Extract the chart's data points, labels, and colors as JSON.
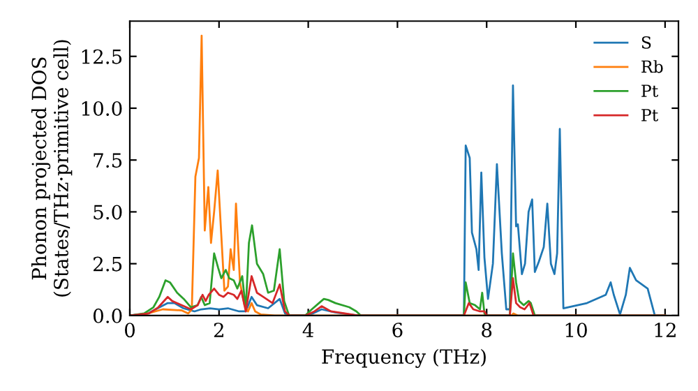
{
  "chart_data": {
    "type": "line",
    "xlabel": "Frequency (THz)",
    "ylabel": "Phonon projected DOS\n(States/THz·primitive cell)",
    "xlim": [
      0,
      12.3
    ],
    "ylim": [
      0,
      14.2
    ],
    "xticks": [
      0,
      2,
      4,
      6,
      8,
      10,
      12
    ],
    "yticks": [
      {
        "value": 0,
        "label": "0.0"
      },
      {
        "value": 2.5,
        "label": "2.5"
      },
      {
        "value": 5,
        "label": "5.0"
      },
      {
        "value": 7.5,
        "label": "7.5"
      },
      {
        "value": 10,
        "label": "10.0"
      },
      {
        "value": 12.5,
        "label": "12.5"
      }
    ],
    "legend": "top right",
    "grid": false,
    "line_style": "solid",
    "marker": "none",
    "series": [
      {
        "name": "S",
        "color": "#1f77b4",
        "x": [
          0,
          0.4,
          0.85,
          1.0,
          1.2,
          1.45,
          1.6,
          1.8,
          2.0,
          2.2,
          2.45,
          2.6,
          2.73,
          2.85,
          3.1,
          3.36,
          3.48,
          3.58,
          4.0,
          4.3,
          4.6,
          5.1,
          7.49,
          7.53,
          7.62,
          7.67,
          7.77,
          7.82,
          7.88,
          7.95,
          8.03,
          8.14,
          8.23,
          8.34,
          8.44,
          8.52,
          8.59,
          8.66,
          8.7,
          8.79,
          8.86,
          8.94,
          9.02,
          9.08,
          9.17,
          9.28,
          9.36,
          9.44,
          9.52,
          9.58,
          9.64,
          9.72,
          10.25,
          10.67,
          10.78,
          10.85,
          10.99,
          11.12,
          11.21,
          11.35,
          11.61,
          11.77,
          12.0
        ],
        "values": [
          0,
          0.1,
          0.6,
          0.6,
          0.35,
          0.2,
          0.3,
          0.35,
          0.3,
          0.35,
          0.2,
          0.2,
          0.9,
          0.5,
          0.35,
          0.8,
          0.1,
          0,
          0,
          0.3,
          0.15,
          0,
          0,
          8.2,
          7.6,
          4.0,
          3.2,
          2.2,
          6.9,
          2.8,
          0.8,
          2.5,
          7.3,
          3.0,
          0.3,
          0.3,
          11.1,
          4.3,
          4.4,
          2.0,
          2.5,
          5.0,
          5.6,
          2.1,
          2.6,
          3.3,
          5.4,
          2.5,
          2.0,
          3.0,
          9.0,
          0.35,
          0.6,
          1.0,
          1.6,
          1.0,
          0.05,
          1.0,
          2.3,
          1.7,
          1.3,
          0,
          0
        ]
      },
      {
        "name": "Rb",
        "color": "#ff7f0e",
        "x": [
          0,
          0.32,
          0.74,
          1.16,
          1.31,
          1.39,
          1.47,
          1.55,
          1.61,
          1.68,
          1.76,
          1.82,
          1.89,
          1.97,
          2.05,
          2.12,
          2.2,
          2.26,
          2.33,
          2.38,
          2.47,
          2.57,
          2.65,
          2.73,
          2.81,
          2.94,
          3.25,
          8.55,
          8.6,
          8.7,
          12.0
        ],
        "values": [
          0,
          0.05,
          0.3,
          0.25,
          0.1,
          0.3,
          6.7,
          7.6,
          13.5,
          4.1,
          6.2,
          3.5,
          5.0,
          7.0,
          3.9,
          1.2,
          1.4,
          3.2,
          2.2,
          5.4,
          1.6,
          0.5,
          0.2,
          0.6,
          0.2,
          0.05,
          0,
          0,
          0.1,
          0,
          0
        ]
      },
      {
        "name": "Pt",
        "color": "#2ca02c",
        "x": [
          0,
          0.32,
          0.53,
          0.66,
          0.8,
          0.9,
          1.06,
          1.21,
          1.37,
          1.52,
          1.6,
          1.68,
          1.79,
          1.89,
          1.98,
          2.05,
          2.15,
          2.23,
          2.33,
          2.41,
          2.52,
          2.6,
          2.67,
          2.74,
          2.85,
          2.99,
          3.1,
          3.23,
          3.36,
          3.46,
          3.57,
          3.93,
          4.08,
          4.24,
          4.35,
          4.45,
          4.61,
          4.92,
          5.08,
          5.18,
          7.49,
          7.53,
          7.62,
          7.74,
          7.85,
          7.9,
          7.95,
          8.0,
          8.52,
          8.59,
          8.66,
          8.73,
          8.83,
          8.94,
          8.99,
          9.08,
          12.0
        ],
        "values": [
          0,
          0.1,
          0.4,
          0.9,
          1.7,
          1.6,
          1.1,
          0.8,
          0.4,
          0.5,
          0.9,
          0.5,
          0.6,
          3.0,
          2.3,
          1.8,
          2.2,
          1.8,
          1.7,
          1.3,
          1.9,
          0.3,
          3.5,
          4.35,
          2.5,
          2.0,
          1.1,
          1.2,
          3.2,
          0.7,
          0,
          0,
          0.3,
          0.6,
          0.8,
          0.75,
          0.6,
          0.4,
          0.2,
          0,
          0,
          1.6,
          0.6,
          0.5,
          0.3,
          1.1,
          0.1,
          0,
          0,
          3.0,
          1.6,
          0.7,
          0.5,
          0.7,
          0.6,
          0,
          0
        ]
      },
      {
        "name": "Pt",
        "color": "#d62728",
        "x": [
          0,
          0.43,
          0.64,
          0.85,
          0.95,
          1.16,
          1.37,
          1.52,
          1.63,
          1.7,
          1.77,
          1.89,
          2.0,
          2.1,
          2.2,
          2.33,
          2.41,
          2.5,
          2.6,
          2.73,
          2.85,
          2.99,
          3.2,
          3.36,
          3.48,
          3.58,
          3.93,
          4.14,
          4.3,
          4.51,
          4.82,
          5.13,
          7.49,
          7.6,
          7.7,
          7.85,
          7.95,
          8.0,
          8.52,
          8.59,
          8.66,
          8.75,
          8.85,
          8.96,
          9.05,
          12.0
        ],
        "values": [
          0,
          0.1,
          0.4,
          0.9,
          0.7,
          0.5,
          0.3,
          0.5,
          1.0,
          0.7,
          1.0,
          1.3,
          1.0,
          0.9,
          1.1,
          1.0,
          0.8,
          1.2,
          0.2,
          1.9,
          1.1,
          0.9,
          0.6,
          1.5,
          0.2,
          0,
          0,
          0.2,
          0.45,
          0.2,
          0.1,
          0,
          0,
          0.6,
          0.3,
          0.2,
          0.2,
          0,
          0,
          1.8,
          0.6,
          0.4,
          0.3,
          0.6,
          0,
          0
        ]
      }
    ]
  }
}
